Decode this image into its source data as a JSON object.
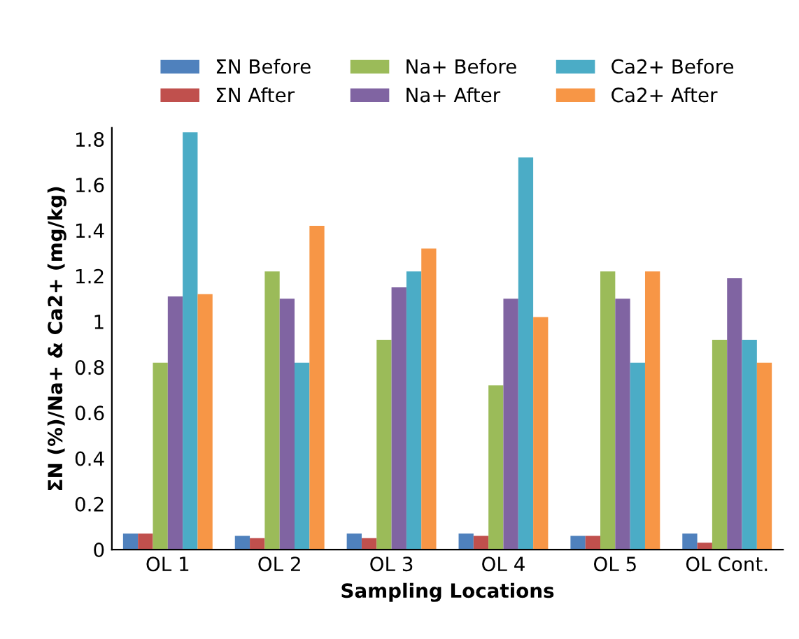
{
  "chart_data": {
    "type": "bar",
    "xlabel": "Sampling Locations",
    "ylabel": "ΣN (%)/Na+ & Ca2+ (mg/kg)",
    "categories": [
      "OL 1",
      "OL 2",
      "OL 3",
      "OL 4",
      "OL 5",
      "OL Cont."
    ],
    "series": [
      {
        "name": "ΣN Before",
        "color": "#4f81bd",
        "values": [
          0.07,
          0.06,
          0.07,
          0.07,
          0.06,
          0.07
        ]
      },
      {
        "name": "ΣN After",
        "color": "#c0504d",
        "values": [
          0.07,
          0.05,
          0.05,
          0.06,
          0.06,
          0.03
        ]
      },
      {
        "name": "Na+ Before",
        "color": "#9bbb59",
        "values": [
          0.82,
          1.22,
          0.92,
          0.72,
          1.22,
          0.92
        ]
      },
      {
        "name": "Na+ After",
        "color": "#8064a2",
        "values": [
          1.11,
          1.1,
          1.15,
          1.1,
          1.1,
          1.19
        ]
      },
      {
        "name": "Ca2+ Before",
        "color": "#4bacc6",
        "values": [
          1.83,
          0.82,
          1.22,
          1.72,
          0.82,
          0.92
        ]
      },
      {
        "name": "Ca2+ After",
        "color": "#f79646",
        "values": [
          1.12,
          1.42,
          1.32,
          1.02,
          1.22,
          0.82
        ]
      }
    ],
    "ylim": [
      0,
      1.85
    ],
    "yticks": [
      0,
      0.2,
      0.4,
      0.6,
      0.8,
      1,
      1.2,
      1.4,
      1.6,
      1.8
    ],
    "legend": "top"
  }
}
